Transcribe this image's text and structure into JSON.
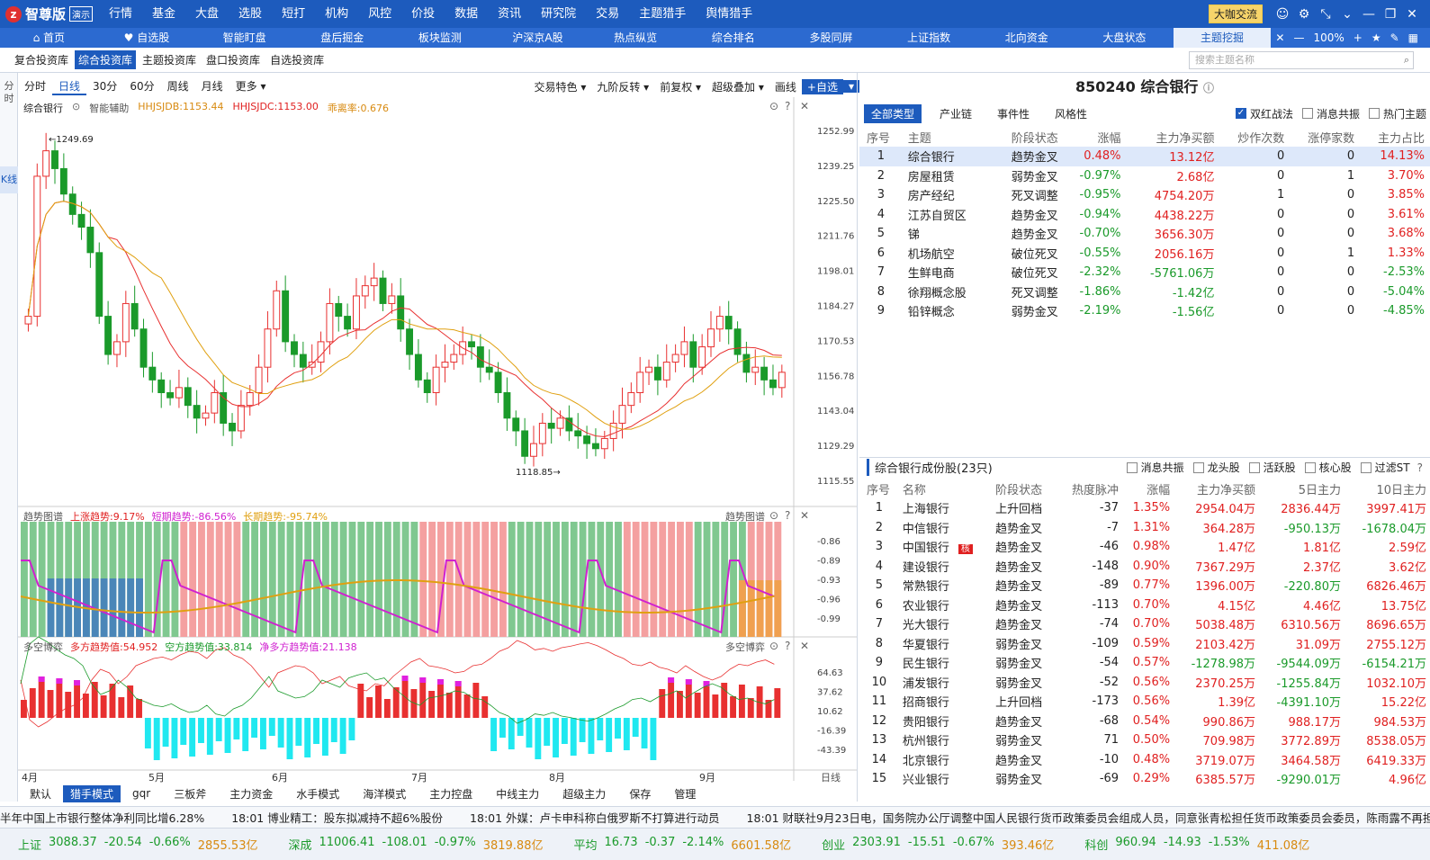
{
  "app": {
    "logo": "智尊版",
    "badge": "演示",
    "menu": [
      "行情",
      "基金",
      "大盘",
      "选股",
      "短打",
      "机构",
      "风控",
      "价投",
      "数据",
      "资讯",
      "研究院",
      "交易",
      "主题猎手",
      "舆情猎手"
    ],
    "coffee": "大咖交流"
  },
  "tabs": [
    "首页",
    "自选股",
    "智能盯盘",
    "盘后掘金",
    "板块监测",
    "沪深京A股",
    "热点纵览",
    "综合排名",
    "多股同屏",
    "上证指数",
    "北向资金",
    "大盘状态",
    "主题挖掘"
  ],
  "zoom": "100%",
  "subtabs": [
    "复合投资库",
    "综合投资库",
    "主题投资库",
    "盘口投资库",
    "自选投资库"
  ],
  "search_placeholder": "搜索主题名称",
  "leftstrip": [
    "分时",
    "K线"
  ],
  "periods": [
    "分时",
    "日线",
    "30分",
    "60分",
    "周线",
    "月线",
    "更多"
  ],
  "chart_tools": [
    "交易特色",
    "九阶反转",
    "前复权",
    "超级叠加",
    "画线",
    "+自选"
  ],
  "kline_legend": {
    "name": "综合银行",
    "assist": "智能辅助",
    "l1": "HHJSJDB:1153.44",
    "l2": "HHJSJDC:1153.00",
    "l3": "乖离率:0.676"
  },
  "trend_legend": {
    "t": "趋势图谱",
    "a": "上涨趋势:9.17%",
    "b": "短期趋势:-86.56%",
    "c": "长期趋势:-95.74%",
    "right": "趋势图谱"
  },
  "dk_legend": {
    "t": "多空博弈",
    "a": "多方趋势值:54.952",
    "b": "空方趋势值:33.814",
    "c": "净多方趋势值:21.138",
    "right": "多空博弈"
  },
  "chart_data": {
    "type": "candlestick",
    "high_label": "1249.69",
    "low_label": "1118.85",
    "yticks": [
      "1252.99",
      "1239.25",
      "1225.50",
      "1211.76",
      "1198.01",
      "1184.27",
      "1170.53",
      "1156.78",
      "1143.04",
      "1129.29",
      "1115.55"
    ],
    "trend_ticks": [
      "-0.86",
      "-0.89",
      "-0.93",
      "-0.96",
      "-0.99"
    ],
    "dk_ticks": [
      "64.63",
      "37.62",
      "10.62",
      "-16.39",
      "-43.39"
    ],
    "months": [
      "4月",
      "5月",
      "6月",
      "7月",
      "8月",
      "9月"
    ],
    "period": "日线"
  },
  "bottom_tabs": [
    "默认",
    "猎手模式",
    "gqr",
    "三板斧",
    "主力资金",
    "水手模式",
    "海洋模式",
    "主力控盘",
    "中线主力",
    "超级主力",
    "保存",
    "管理"
  ],
  "right": {
    "title": "850240 综合银行",
    "filters": [
      "全部类型",
      "产业链",
      "事件性",
      "风格性"
    ],
    "checks": [
      "双红战法",
      "消息共振",
      "热门主题"
    ],
    "cols": [
      "序号",
      "主题",
      "阶段状态",
      "涨幅",
      "主力净买额",
      "炒作次数",
      "涨停家数",
      "主力占比"
    ],
    "rows": [
      [
        "1",
        "综合银行",
        "趋势金叉",
        "0.48%",
        "13.12亿",
        "0",
        "0",
        "14.13%"
      ],
      [
        "2",
        "房屋租赁",
        "弱势金叉",
        "-0.97%",
        "2.68亿",
        "0",
        "1",
        "3.70%"
      ],
      [
        "3",
        "房产经纪",
        "死叉调整",
        "-0.95%",
        "4754.20万",
        "1",
        "0",
        "3.85%"
      ],
      [
        "4",
        "江苏自贸区",
        "趋势金叉",
        "-0.94%",
        "4438.22万",
        "0",
        "0",
        "3.61%"
      ],
      [
        "5",
        "锑",
        "趋势金叉",
        "-0.70%",
        "3656.30万",
        "0",
        "0",
        "3.68%"
      ],
      [
        "6",
        "机场航空",
        "破位死叉",
        "-0.55%",
        "2056.16万",
        "0",
        "1",
        "1.33%"
      ],
      [
        "7",
        "生鲜电商",
        "破位死叉",
        "-2.32%",
        "-5761.06万",
        "0",
        "0",
        "-2.53%"
      ],
      [
        "8",
        "徐翔概念股",
        "死叉调整",
        "-1.86%",
        "-1.42亿",
        "0",
        "0",
        "-5.04%"
      ],
      [
        "9",
        "铅锌概念",
        "弱势金叉",
        "-2.19%",
        "-1.56亿",
        "0",
        "0",
        "-4.85%"
      ]
    ],
    "sec2": "综合银行成份股(23只)",
    "checks2": [
      "消息共振",
      "龙头股",
      "活跃股",
      "核心股",
      "过滤ST"
    ],
    "cols2": [
      "序号",
      "名称",
      "阶段状态",
      "热度脉冲",
      "涨幅",
      "主力净买额",
      "5日主力",
      "10日主力"
    ],
    "rows2": [
      [
        "1",
        "上海银行",
        "上升回档",
        "-37",
        "1.35%",
        "2954.04万",
        "2836.44万",
        "3997.41万"
      ],
      [
        "2",
        "中信银行",
        "趋势金叉",
        "-7",
        "1.31%",
        "364.28万",
        "-950.13万",
        "-1678.04万"
      ],
      [
        "3",
        "中国银行",
        "趋势金叉",
        "-46",
        "0.98%",
        "1.47亿",
        "1.81亿",
        "2.59亿"
      ],
      [
        "4",
        "建设银行",
        "趋势金叉",
        "-148",
        "0.90%",
        "7367.29万",
        "2.37亿",
        "3.62亿"
      ],
      [
        "5",
        "常熟银行",
        "趋势金叉",
        "-89",
        "0.77%",
        "1396.00万",
        "-220.80万",
        "6826.46万"
      ],
      [
        "6",
        "农业银行",
        "趋势金叉",
        "-113",
        "0.70%",
        "4.15亿",
        "4.46亿",
        "13.75亿"
      ],
      [
        "7",
        "光大银行",
        "趋势金叉",
        "-74",
        "0.70%",
        "5038.48万",
        "6310.56万",
        "8696.65万"
      ],
      [
        "8",
        "华夏银行",
        "弱势金叉",
        "-109",
        "0.59%",
        "2103.42万",
        "31.09万",
        "2755.12万"
      ],
      [
        "9",
        "民生银行",
        "弱势金叉",
        "-54",
        "0.57%",
        "-1278.98万",
        "-9544.09万",
        "-6154.21万"
      ],
      [
        "10",
        "浦发银行",
        "弱势金叉",
        "-52",
        "0.56%",
        "2370.25万",
        "-1255.84万",
        "1032.10万"
      ],
      [
        "11",
        "招商银行",
        "上升回档",
        "-173",
        "0.56%",
        "1.39亿",
        "-4391.10万",
        "15.22亿"
      ],
      [
        "12",
        "贵阳银行",
        "趋势金叉",
        "-68",
        "0.54%",
        "990.86万",
        "988.17万",
        "984.53万"
      ],
      [
        "13",
        "杭州银行",
        "弱势金叉",
        "71",
        "0.50%",
        "709.98万",
        "3772.89万",
        "8538.05万"
      ],
      [
        "14",
        "北京银行",
        "趋势金叉",
        "-10",
        "0.48%",
        "3719.07万",
        "3464.58万",
        "6419.33万"
      ],
      [
        "15",
        "兴业银行",
        "弱势金叉",
        "-69",
        "0.29%",
        "6385.57万",
        "-9290.01万",
        "4.96亿"
      ]
    ],
    "badge_core": "核"
  },
  "news": [
    "半年中国上市银行整体净利同比增6.28%",
    "18:01 博业精工：股东拟减持不超6%股份",
    "18:01 外媒：卢卡申科称白俄罗斯不打算进行动员",
    "18:01 财联社9月23日电，国务院办公厅调整中国人民银行货币政策委员会组成人员，同意张青松担任货币政策委员会委员，陈雨露不再担"
  ],
  "ticker": [
    [
      "上证",
      "3088.37",
      "-20.54",
      "-0.66%",
      "2855.53亿"
    ],
    [
      "深成",
      "11006.41",
      "-108.01",
      "-0.97%",
      "3819.88亿"
    ],
    [
      "平均",
      "16.73",
      "-0.37",
      "-2.14%",
      "6601.58亿"
    ],
    [
      "创业",
      "2303.91",
      "-15.51",
      "-0.67%",
      "393.46亿"
    ],
    [
      "科创",
      "960.94",
      "-14.93",
      "-1.53%",
      "411.08亿"
    ]
  ],
  "day_label": "日线"
}
